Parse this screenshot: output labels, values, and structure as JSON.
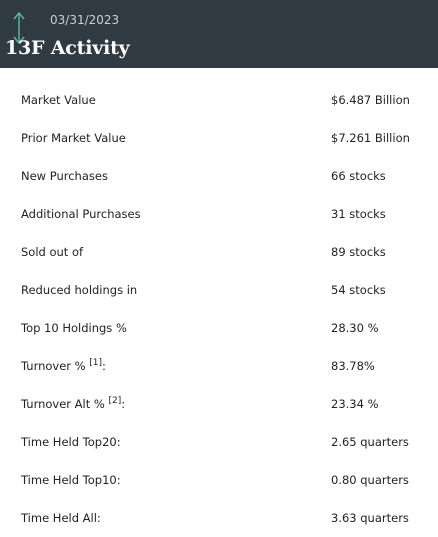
{
  "header": {
    "date": "03/31/2023",
    "title": "13F Activity",
    "icon": "up-down-arrow-icon",
    "icon_color": "#5fb8a8",
    "background": "#2f3a42"
  },
  "rows": [
    {
      "label": "Market Value",
      "value": "$6.487 Billion"
    },
    {
      "label": "Prior Market Value",
      "value": "$7.261 Billion"
    },
    {
      "label": "New Purchases",
      "value": "66 stocks"
    },
    {
      "label": "Additional Purchases",
      "value": "31 stocks"
    },
    {
      "label": "Sold out of",
      "value": "89 stocks"
    },
    {
      "label": "Reduced holdings in",
      "value": "54 stocks"
    },
    {
      "label": "Top 10 Holdings %",
      "value": "28.30 %"
    },
    {
      "label": "Turnover %",
      "note": "[1]",
      "suffix": ":",
      "value": "83.78%"
    },
    {
      "label": "Turnover Alt %",
      "note": "[2]",
      "suffix": ":",
      "value": "23.34 %"
    },
    {
      "label": "Time Held Top20:",
      "value": "2.65 quarters"
    },
    {
      "label": "Time Held Top10:",
      "value": "0.80 quarters"
    },
    {
      "label": "Time Held All:",
      "value": "3.63 quarters"
    }
  ]
}
